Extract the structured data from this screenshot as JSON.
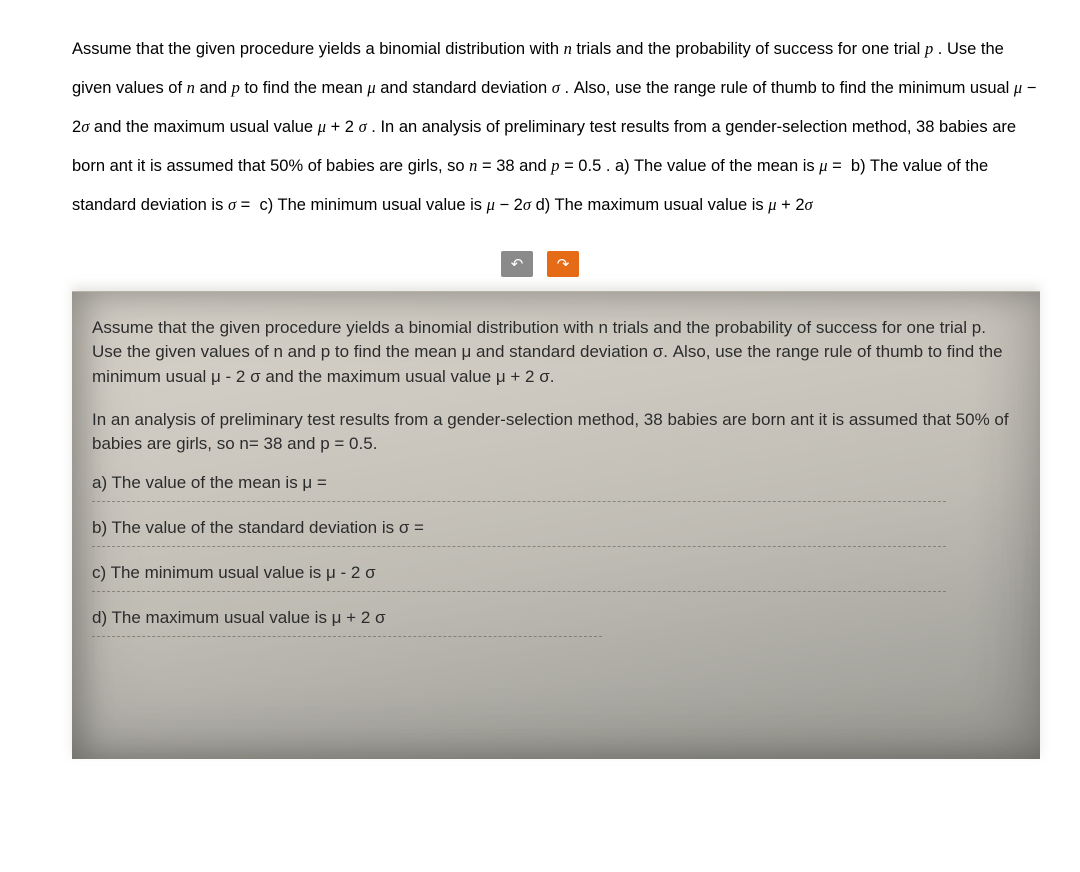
{
  "top_text": "Assume that the given procedure yields a binomial distribution with n trials and the probability of success for one trial p . Use the given values of n and p to find the mean μ and standard deviation σ . Also, use the range rule of thumb to find the minimum usual μ − 2σ and the maximum usual value μ + 2 σ . In an analysis of preliminary test results from a gender-selection method, 38 babies are born ant it is assumed that 50% of babies are girls, so n = 38 and p = 0.5 . a) The value of the mean is μ =  b) The value of the standard deviation is σ =  c) The minimum usual value is μ − 2σ d) The maximum usual value is μ + 2σ",
  "buttons": {
    "undo": "↶",
    "redo": "↷"
  },
  "photo": {
    "p1": "Assume that the given procedure yields a binomial distribution with n trials and the probability of success for one trial p. Use the given values of n and p to find the mean μ and standard deviation σ. Also, use the range rule of thumb to find the minimum usual μ - 2 σ and the maximum usual value μ + 2 σ.",
    "p2": "In an analysis of preliminary test results from a gender-selection method, 38 babies are born ant it is assumed that 50% of babies are girls, so n= 38 and p = 0.5.",
    "qa": "a) The value of the mean is μ =",
    "qb": "b) The value of the standard deviation is  σ =",
    "qc": "c) The minimum usual value is  μ - 2 σ",
    "qd": "d) The maximum usual value is μ + 2 σ"
  }
}
